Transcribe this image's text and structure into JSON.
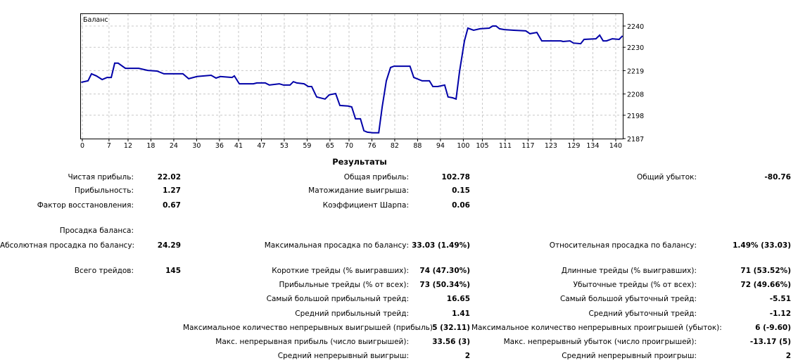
{
  "chart_data": {
    "type": "line",
    "title": "Баланс",
    "xlabel": "",
    "ylabel": "",
    "xlim": [
      -0.5,
      141.8
    ],
    "ylim": [
      2187,
      2246
    ],
    "grid": true,
    "x_ticks": [
      0,
      7,
      12,
      18,
      24,
      30,
      36,
      41,
      47,
      53,
      59,
      65,
      70,
      76,
      82,
      88,
      94,
      100,
      105,
      111,
      117,
      123,
      129,
      134,
      140
    ],
    "y_ticks": [
      2240,
      2230,
      2219,
      2208,
      2198,
      2187
    ],
    "series": [
      {
        "name": "Баланс",
        "color": "#0000a8",
        "points": [
          [
            -0.3,
            2213.5
          ],
          [
            1.5,
            2214.2
          ],
          [
            2.4,
            2217.5
          ],
          [
            3.7,
            2216.5
          ],
          [
            5.2,
            2214.8
          ],
          [
            6.5,
            2215.8
          ],
          [
            7.6,
            2215.8
          ],
          [
            8.5,
            2222.5
          ],
          [
            9.4,
            2222.5
          ],
          [
            11.3,
            2220.1
          ],
          [
            12.2,
            2220.1
          ],
          [
            14.8,
            2220.1
          ],
          [
            17.2,
            2219.1
          ],
          [
            19.6,
            2218.8
          ],
          [
            21.4,
            2217.5
          ],
          [
            26.4,
            2217.5
          ],
          [
            27.9,
            2215.2
          ],
          [
            30.1,
            2216.2
          ],
          [
            33.8,
            2216.8
          ],
          [
            35.1,
            2215.5
          ],
          [
            36.2,
            2216.2
          ],
          [
            39.3,
            2215.8
          ],
          [
            39.9,
            2216.5
          ],
          [
            41.2,
            2212.8
          ],
          [
            44.9,
            2212.8
          ],
          [
            45.8,
            2213.2
          ],
          [
            48,
            2213.2
          ],
          [
            49.1,
            2212.2
          ],
          [
            51.7,
            2212.8
          ],
          [
            52.8,
            2212.2
          ],
          [
            54.5,
            2212.2
          ],
          [
            55.4,
            2213.8
          ],
          [
            56.3,
            2213.2
          ],
          [
            58.2,
            2212.8
          ],
          [
            59.3,
            2211.5
          ],
          [
            60.2,
            2211.5
          ],
          [
            61.5,
            2206.6
          ],
          [
            63.7,
            2205.6
          ],
          [
            64.8,
            2207.6
          ],
          [
            66.5,
            2208.2
          ],
          [
            67.6,
            2202.6
          ],
          [
            69.8,
            2202.3
          ],
          [
            70.7,
            2201.9
          ],
          [
            71.7,
            2196.3
          ],
          [
            73,
            2196.3
          ],
          [
            73.9,
            2190.7
          ],
          [
            74.8,
            2190
          ],
          [
            76.3,
            2189.7
          ],
          [
            77.8,
            2189.7
          ],
          [
            78.7,
            2201.9
          ],
          [
            79.8,
            2214.2
          ],
          [
            80.9,
            2220.5
          ],
          [
            81.8,
            2221.1
          ],
          [
            86,
            2221.1
          ],
          [
            87,
            2215.8
          ],
          [
            89.2,
            2214.2
          ],
          [
            91.1,
            2214.2
          ],
          [
            92,
            2211.5
          ],
          [
            93.3,
            2211.5
          ],
          [
            95.1,
            2212.2
          ],
          [
            96,
            2206.6
          ],
          [
            97.2,
            2206.2
          ],
          [
            98.1,
            2205.6
          ],
          [
            99,
            2218.5
          ],
          [
            100.3,
            2233
          ],
          [
            101.2,
            2239
          ],
          [
            102.7,
            2238
          ],
          [
            104.4,
            2238.7
          ],
          [
            106.8,
            2239
          ],
          [
            107.7,
            2240
          ],
          [
            108.6,
            2240
          ],
          [
            109.5,
            2238.7
          ],
          [
            110.8,
            2238.3
          ],
          [
            113.2,
            2238
          ],
          [
            116.4,
            2237.7
          ],
          [
            117.5,
            2236.4
          ],
          [
            119.3,
            2237
          ],
          [
            120.6,
            2233
          ],
          [
            125.6,
            2233
          ],
          [
            126.2,
            2232.7
          ],
          [
            128,
            2233
          ],
          [
            128.9,
            2232
          ],
          [
            130.8,
            2231.7
          ],
          [
            131.7,
            2233.7
          ],
          [
            134.8,
            2234
          ],
          [
            135.8,
            2235.7
          ],
          [
            136.7,
            2233
          ],
          [
            137.6,
            2233
          ],
          [
            139.1,
            2234
          ],
          [
            140.9,
            2233.7
          ],
          [
            141.8,
            2235.4
          ]
        ]
      }
    ]
  },
  "results": {
    "title": "Результаты",
    "rows": [
      {
        "c1l": "Чистая прибыль:",
        "c1v": "22.02",
        "c2l": "Общая прибыль:",
        "c2v": "102.78",
        "c3l": "Общий убыток:",
        "c3v": "-80.76"
      },
      {
        "c1l": "Прибыльность:",
        "c1v": "1.27",
        "c2l": "Матожидание выигрыша:",
        "c2v": "0.15"
      },
      {
        "c1l": "Фактор восстановления:",
        "c1v": "0.67",
        "c2l": "Коэффициент Шарпа:",
        "c2v": "0.06"
      },
      {
        "c1l": "Просадка баланса:"
      },
      {
        "c1l": "Абсолютная просадка по балансу:",
        "c1v": "24.29",
        "c2l": "Максимальная просадка по балансу:",
        "c2v": "33.03 (1.49%)",
        "c3l": "Относительная просадка по балансу:",
        "c3v": "1.49% (33.03)"
      },
      {
        "c1l": "Всего трейдов:",
        "c1v": "145",
        "c2l": "Короткие трейды (% выигравших):",
        "c2v": "74 (47.30%)",
        "c3l": "Длинные трейды (% выигравших):",
        "c3v": "71 (53.52%)"
      },
      {
        "c2l": "Прибыльные трейды (% от всех):",
        "c2v": "73 (50.34%)",
        "c3l": "Убыточные трейды (% от всех):",
        "c3v": "72 (49.66%)"
      },
      {
        "c2l": "Самый большой прибыльный трейд:",
        "c2v": "16.65",
        "c3l": "Самый большой убыточный трейд:",
        "c3v": "-5.51"
      },
      {
        "c2l": "Средний прибыльный трейд:",
        "c2v": "1.41",
        "c3l": "Средний убыточный трейд:",
        "c3v": "-1.12"
      },
      {
        "c2l": "Максимальное количество непрерывных выигрышей (прибыль):",
        "c2v": "5 (32.11)",
        "c3l": "Максимальное количество непрерывных проигрышей (убыток):",
        "c3v": "6 (-9.60)"
      },
      {
        "c2l": "Макс. непрерывная прибыль (число выигрышей):",
        "c2v": "33.56 (3)",
        "c3l": "Макс. непрерывный убыток (число проигрышей):",
        "c3v": "-13.17 (5)"
      },
      {
        "c2l": "Средний непрерывный выигрыш:",
        "c2v": "2",
        "c3l": "Средний непрерывный проигрыш:",
        "c3v": "2"
      }
    ]
  }
}
